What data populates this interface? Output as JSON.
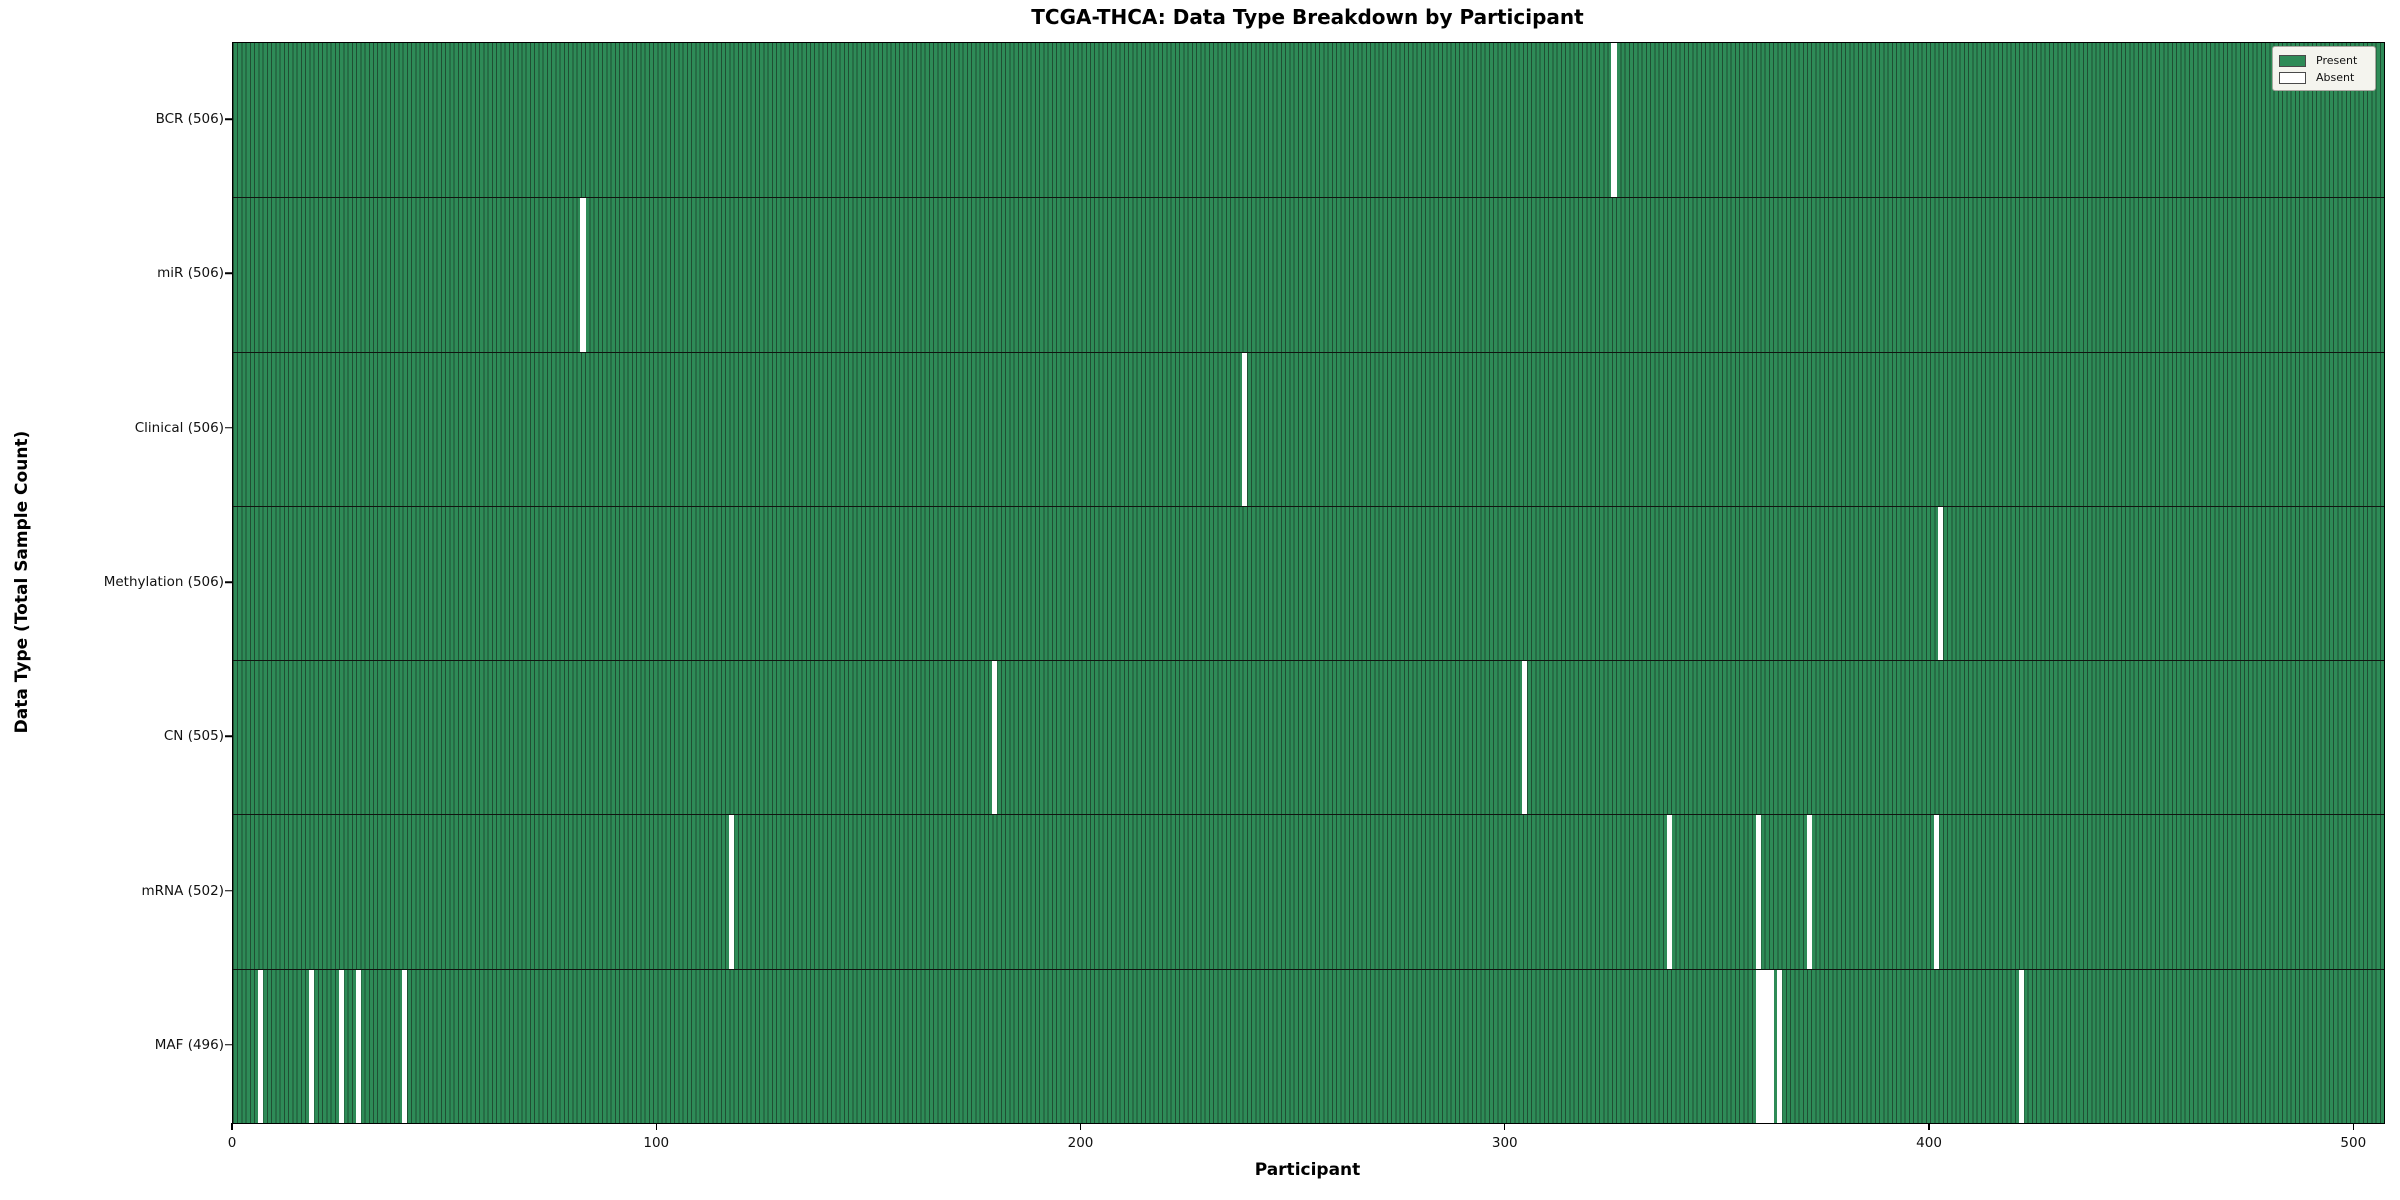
{
  "title": "TCGA-THCA: Data Type Breakdown by Participant",
  "chart_data": {
    "type": "heatmap",
    "title": "TCGA-THCA: Data Type Breakdown by Participant",
    "xlabel": "Participant",
    "ylabel": "Data Type (Total Sample Count)",
    "xlim": [
      0,
      507
    ],
    "x_ticks": [
      0,
      100,
      200,
      300,
      400,
      500
    ],
    "total_participants": 507,
    "grid": false,
    "colors": {
      "present": "#2e8b57",
      "absent": "#ffffff",
      "bar_edge": "#1f4f33",
      "row_divider": "#101510",
      "axis": "#000000"
    },
    "rows": [
      {
        "name": "BCR",
        "label": "BCR (506)",
        "count": 506,
        "absent": [
          325
        ]
      },
      {
        "name": "miR",
        "label": "miR (506)",
        "count": 506,
        "absent": [
          82
        ]
      },
      {
        "name": "Clinical",
        "label": "Clinical (506)",
        "count": 506,
        "absent": [
          238
        ]
      },
      {
        "name": "Methylation",
        "label": "Methylation (506)",
        "count": 506,
        "absent": [
          402
        ]
      },
      {
        "name": "CN",
        "label": "CN (505)",
        "count": 505,
        "absent": [
          179,
          304
        ]
      },
      {
        "name": "mRNA",
        "label": "mRNA (502)",
        "count": 502,
        "absent": [
          117,
          338,
          359,
          371,
          401
        ]
      },
      {
        "name": "MAF",
        "label": "MAF (496)",
        "count": 496,
        "absent": [
          6,
          18,
          25,
          29,
          40,
          359,
          360,
          361,
          362,
          364,
          421
        ]
      }
    ],
    "legend": {
      "position": "upper right",
      "entries": [
        {
          "label": "Present",
          "color": "#2e8b57"
        },
        {
          "label": "Absent",
          "color": "#ffffff"
        }
      ]
    }
  }
}
